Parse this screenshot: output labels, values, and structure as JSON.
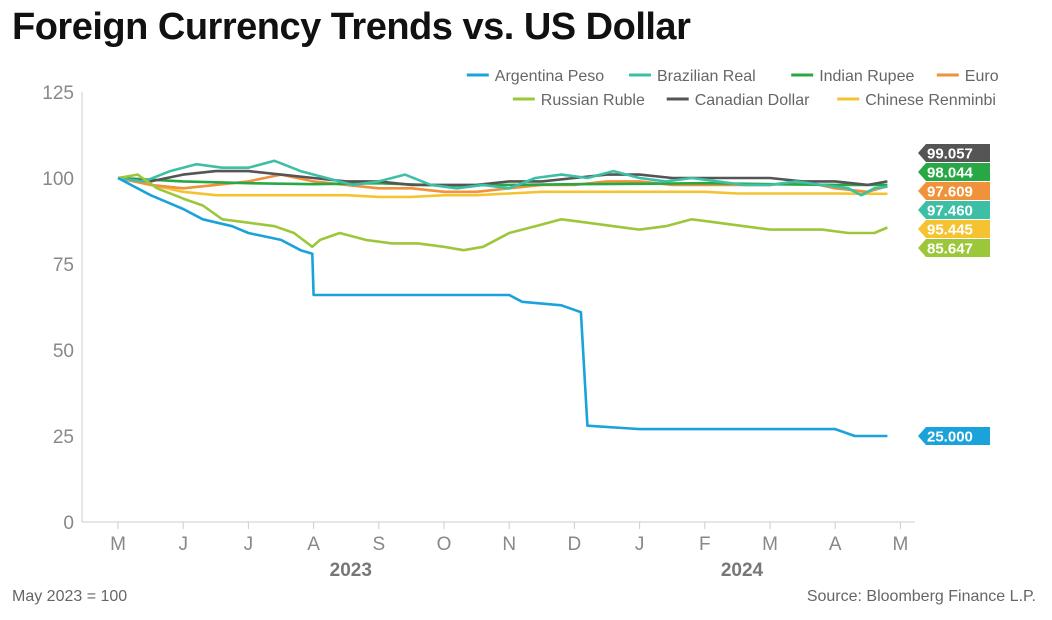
{
  "chart_data": {
    "type": "line",
    "title": "Foreign Currency Trends vs. US Dollar",
    "footnote": "May 2023 = 100",
    "source": "Source: Bloomberg Finance L.P.",
    "ylim": [
      0,
      125
    ],
    "yticks": [
      0,
      25,
      50,
      75,
      100,
      125
    ],
    "x_ticks": [
      "M",
      "J",
      "J",
      "A",
      "S",
      "O",
      "N",
      "D",
      "J",
      "F",
      "M",
      "A",
      "M"
    ],
    "year_labels": [
      {
        "label": "2023",
        "at_tick": 4
      },
      {
        "label": "2024",
        "at_tick": 10
      }
    ],
    "grid": false,
    "legend_position": "top-right",
    "series": [
      {
        "name": "Argentina Peso",
        "color": "#1AA3DB",
        "end_label": "25.000",
        "values": [
          [
            0,
            100
          ],
          [
            0.2,
            98
          ],
          [
            0.5,
            95
          ],
          [
            0.75,
            93
          ],
          [
            1.0,
            91
          ],
          [
            1.3,
            88
          ],
          [
            1.75,
            86
          ],
          [
            2.0,
            84
          ],
          [
            2.5,
            82
          ],
          [
            2.8,
            79
          ],
          [
            2.98,
            78
          ],
          [
            3.0,
            66
          ],
          [
            4.0,
            66
          ],
          [
            5.0,
            66
          ],
          [
            6.0,
            66
          ],
          [
            6.2,
            64
          ],
          [
            6.8,
            63
          ],
          [
            7.1,
            61
          ],
          [
            7.2,
            28
          ],
          [
            8.0,
            27
          ],
          [
            9.0,
            27
          ],
          [
            10.0,
            27
          ],
          [
            11.0,
            27
          ],
          [
            11.3,
            25
          ],
          [
            11.8,
            25
          ]
        ]
      },
      {
        "name": "Brazilian Real",
        "color": "#3DBFA6",
        "end_label": "97.460",
        "values": [
          [
            0,
            100
          ],
          [
            0.4,
            99
          ],
          [
            0.8,
            102
          ],
          [
            1.2,
            104
          ],
          [
            1.6,
            103
          ],
          [
            2.0,
            103
          ],
          [
            2.4,
            105
          ],
          [
            2.8,
            102
          ],
          [
            3.2,
            100
          ],
          [
            3.6,
            98
          ],
          [
            4.0,
            99
          ],
          [
            4.4,
            101
          ],
          [
            4.8,
            98
          ],
          [
            5.2,
            97
          ],
          [
            5.6,
            98
          ],
          [
            6.0,
            97
          ],
          [
            6.4,
            100
          ],
          [
            6.8,
            101
          ],
          [
            7.2,
            100
          ],
          [
            7.6,
            102
          ],
          [
            8.0,
            100
          ],
          [
            8.4,
            99
          ],
          [
            8.8,
            100
          ],
          [
            9.2,
            99
          ],
          [
            9.6,
            98
          ],
          [
            10.0,
            98
          ],
          [
            10.4,
            99
          ],
          [
            10.8,
            98
          ],
          [
            11.2,
            97
          ],
          [
            11.4,
            95
          ],
          [
            11.6,
            97
          ],
          [
            11.8,
            97.5
          ]
        ]
      },
      {
        "name": "Indian Rupee",
        "color": "#27A845",
        "end_label": "98.044",
        "values": [
          [
            0,
            100
          ],
          [
            1,
            99
          ],
          [
            2,
            98.5
          ],
          [
            3,
            98.2
          ],
          [
            4,
            98.5
          ],
          [
            5,
            97.8
          ],
          [
            6,
            98
          ],
          [
            7,
            98.2
          ],
          [
            8,
            98.3
          ],
          [
            9,
            98.5
          ],
          [
            10,
            98.2
          ],
          [
            11,
            98
          ],
          [
            11.8,
            98
          ]
        ]
      },
      {
        "name": "Euro",
        "color": "#F0923A",
        "end_label": "97.609",
        "values": [
          [
            0,
            100
          ],
          [
            0.5,
            98
          ],
          [
            1,
            97
          ],
          [
            1.5,
            98
          ],
          [
            2,
            99
          ],
          [
            2.5,
            101
          ],
          [
            3,
            99
          ],
          [
            3.5,
            98
          ],
          [
            4,
            97
          ],
          [
            4.5,
            97
          ],
          [
            5,
            96
          ],
          [
            5.5,
            96
          ],
          [
            6,
            97
          ],
          [
            6.5,
            98
          ],
          [
            7,
            98
          ],
          [
            7.5,
            99
          ],
          [
            8,
            99
          ],
          [
            8.5,
            98
          ],
          [
            9,
            98
          ],
          [
            9.5,
            98
          ],
          [
            10,
            98
          ],
          [
            10.5,
            99
          ],
          [
            11,
            97
          ],
          [
            11.5,
            96
          ],
          [
            11.8,
            97.6
          ]
        ]
      },
      {
        "name": "Russian Ruble",
        "color": "#9DC73A",
        "end_label": "85.647",
        "values": [
          [
            0,
            100
          ],
          [
            0.3,
            101
          ],
          [
            0.6,
            97
          ],
          [
            1.0,
            94
          ],
          [
            1.3,
            92
          ],
          [
            1.6,
            88
          ],
          [
            2.0,
            87
          ],
          [
            2.4,
            86
          ],
          [
            2.7,
            84
          ],
          [
            2.98,
            80
          ],
          [
            3.1,
            82
          ],
          [
            3.4,
            84
          ],
          [
            3.8,
            82
          ],
          [
            4.2,
            81
          ],
          [
            4.6,
            81
          ],
          [
            5.0,
            80
          ],
          [
            5.3,
            79
          ],
          [
            5.6,
            80
          ],
          [
            6.0,
            84
          ],
          [
            6.4,
            86
          ],
          [
            6.8,
            88
          ],
          [
            7.2,
            87
          ],
          [
            7.6,
            86
          ],
          [
            8.0,
            85
          ],
          [
            8.4,
            86
          ],
          [
            8.8,
            88
          ],
          [
            9.2,
            87
          ],
          [
            9.6,
            86
          ],
          [
            10.0,
            85
          ],
          [
            10.4,
            85
          ],
          [
            10.8,
            85
          ],
          [
            11.2,
            84
          ],
          [
            11.6,
            84
          ],
          [
            11.8,
            85.6
          ]
        ]
      },
      {
        "name": "Canadian Dollar",
        "color": "#555555",
        "end_label": "99.057",
        "values": [
          [
            0,
            100
          ],
          [
            0.5,
            99
          ],
          [
            1,
            101
          ],
          [
            1.5,
            102
          ],
          [
            2,
            102
          ],
          [
            2.5,
            101
          ],
          [
            3,
            100
          ],
          [
            3.5,
            99
          ],
          [
            4,
            99
          ],
          [
            4.5,
            98
          ],
          [
            5,
            98
          ],
          [
            5.5,
            98
          ],
          [
            6,
            99
          ],
          [
            6.5,
            99
          ],
          [
            7,
            100
          ],
          [
            7.5,
            101
          ],
          [
            8,
            101
          ],
          [
            8.5,
            100
          ],
          [
            9,
            100
          ],
          [
            9.5,
            100
          ],
          [
            10,
            100
          ],
          [
            10.5,
            99
          ],
          [
            11,
            99
          ],
          [
            11.5,
            98
          ],
          [
            11.8,
            99
          ]
        ]
      },
      {
        "name": "Chinese Renminbi",
        "color": "#F5C332",
        "end_label": "95.445",
        "values": [
          [
            0,
            100
          ],
          [
            0.5,
            98
          ],
          [
            1,
            96
          ],
          [
            1.5,
            95
          ],
          [
            2,
            95
          ],
          [
            2.5,
            95
          ],
          [
            3,
            95
          ],
          [
            3.5,
            95
          ],
          [
            4,
            94.5
          ],
          [
            4.5,
            94.5
          ],
          [
            5,
            95
          ],
          [
            5.5,
            95
          ],
          [
            6,
            95.5
          ],
          [
            6.5,
            96
          ],
          [
            7,
            96
          ],
          [
            7.5,
            96
          ],
          [
            8,
            96
          ],
          [
            8.5,
            96
          ],
          [
            9,
            96
          ],
          [
            9.5,
            95.5
          ],
          [
            10,
            95.5
          ],
          [
            10.5,
            95.5
          ],
          [
            11,
            95.5
          ],
          [
            11.5,
            95.4
          ],
          [
            11.8,
            95.4
          ]
        ]
      }
    ],
    "end_label_order": [
      "Canadian Dollar",
      "Indian Rupee",
      "Euro",
      "Brazilian Real",
      "Chinese Renminbi",
      "Russian Ruble",
      "Argentina Peso"
    ]
  }
}
